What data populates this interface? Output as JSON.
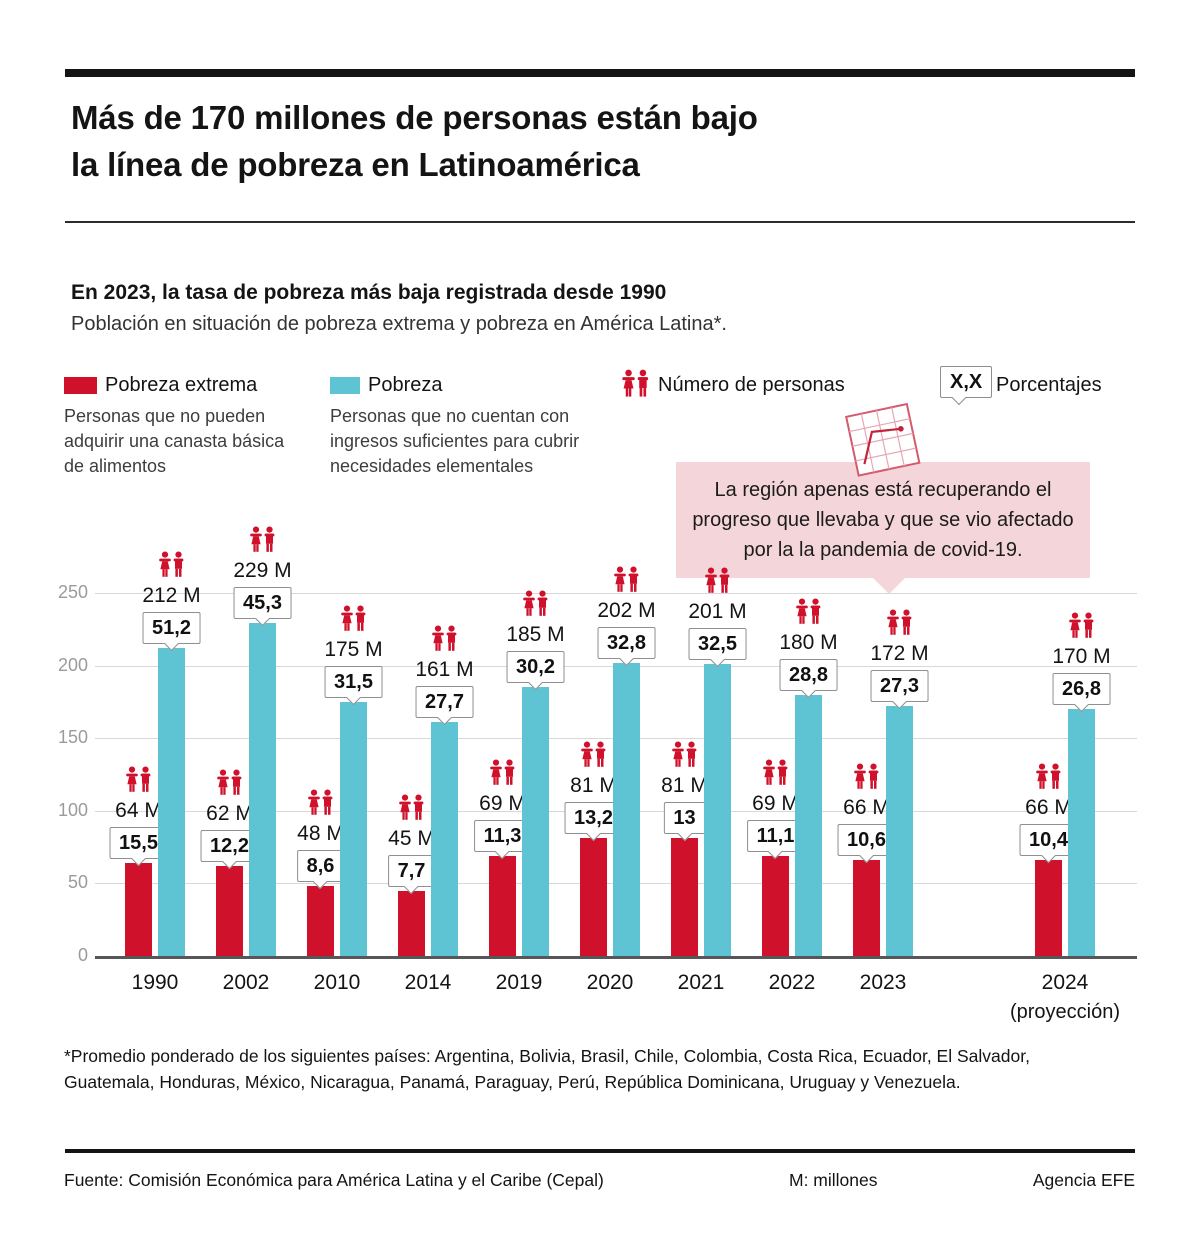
{
  "header": {
    "title_lines": [
      "Más de 170 millones de personas están bajo",
      "la línea de pobreza en Latinoamérica"
    ]
  },
  "legend": {
    "extreme": {
      "label": "Pobreza extrema",
      "description": "Personas que no pueden adquirir una canasta básica de alimentos",
      "color": "#d0112b"
    },
    "poverty": {
      "label": "Pobreza",
      "description": "Personas que no cuentan con ingresos suficientes para cubrir necesidades elementales",
      "color": "#5ec3d2"
    },
    "people": {
      "label": "Número de personas"
    },
    "percent": {
      "badge": "X,X",
      "label": "Porcentajes"
    }
  },
  "callout": {
    "text": "La región apenas está recuperando el progreso que llevaba y que se vio afectado por la la pandemia de covid-19.",
    "background": "#f4d5da"
  },
  "chart_data": {
    "type": "bar",
    "title": "En 2023, la tasa de pobreza más baja registrada desde 1990",
    "subtitle": "Población en situación de pobreza extrema y pobreza en América Latina*.",
    "categories": [
      "1990",
      "2002",
      "2010",
      "2014",
      "2019",
      "2020",
      "2021",
      "2022",
      "2023",
      "2024"
    ],
    "last_category_note": "(proyección)",
    "series": [
      {
        "name": "Pobreza extrema",
        "color": "#d0112b",
        "values_millions": [
          64,
          62,
          48,
          45,
          69,
          81,
          81,
          69,
          66,
          66
        ],
        "value_labels": [
          "64 M",
          "62 M",
          "48 M",
          "45 M",
          "69 M",
          "81 M",
          "81 M",
          "69 M",
          "66 M",
          "66 M"
        ],
        "percent_labels": [
          "15,5",
          "12,2",
          "8,6",
          "7,7",
          "11,3",
          "13,2",
          "13",
          "11,1",
          "10,6",
          "10,4"
        ]
      },
      {
        "name": "Pobreza",
        "color": "#5ec3d2",
        "values_millions": [
          212,
          229,
          175,
          161,
          185,
          202,
          201,
          180,
          172,
          170
        ],
        "value_labels": [
          "212 M",
          "229 M",
          "175 M",
          "161 M",
          "185 M",
          "202 M",
          "201 M",
          "180 M",
          "172 M",
          "170 M"
        ],
        "percent_labels": [
          "51,2",
          "45,3",
          "31,5",
          "27,7",
          "30,2",
          "32,8",
          "32,5",
          "28,8",
          "27,3",
          "26,8"
        ]
      }
    ],
    "ylim": [
      0,
      250
    ],
    "yticks": [
      0,
      50,
      100,
      150,
      200,
      250
    ],
    "grid": true,
    "legend_position": "top"
  },
  "footnote": "*Promedio ponderado de los siguientes países: Argentina, Bolivia, Brasil, Chile, Colombia, Costa Rica, Ecuador, El Salvador, Guatemala, Honduras, México, Nicaragua, Panamá, Paraguay, Perú, República Dominicana, Uruguay y Venezuela.",
  "footer": {
    "source": "Fuente: Comisión Económica para América Latina y el Caribe (Cepal)",
    "note": "M: millones",
    "credit": "Agencia EFE"
  }
}
